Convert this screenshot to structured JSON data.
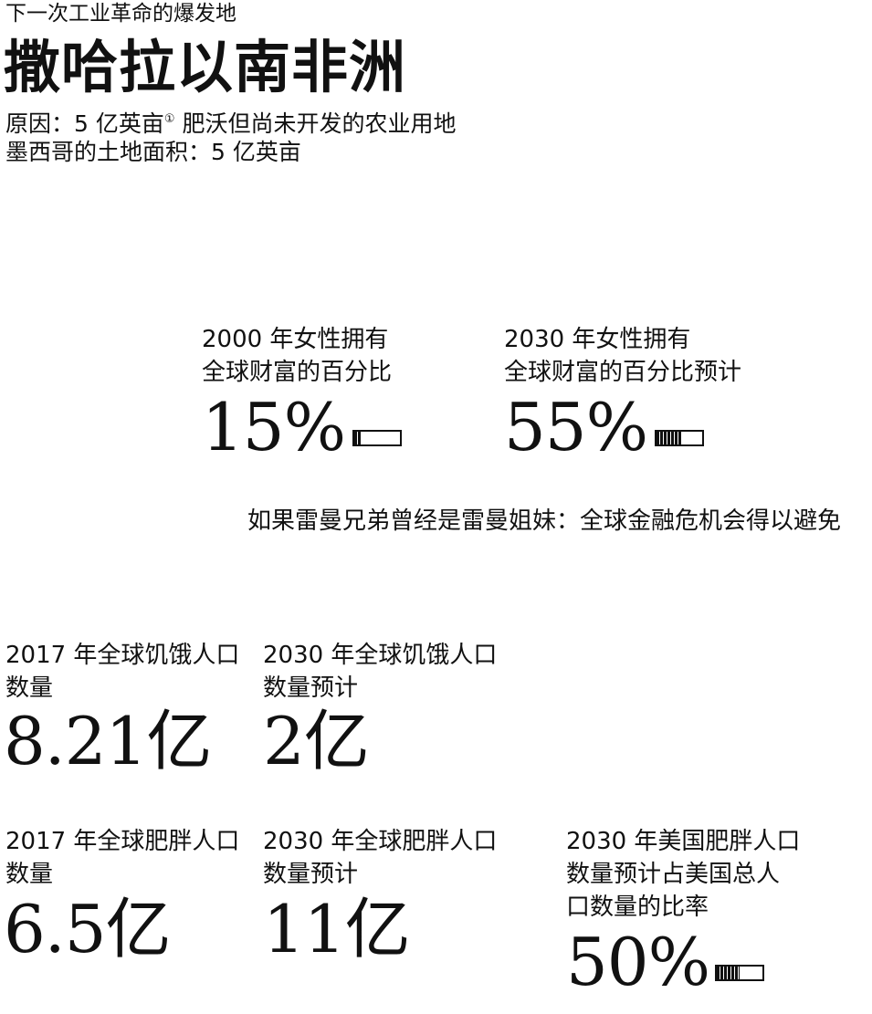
{
  "header": {
    "kicker": "下一次工业革命的爆发地",
    "headline": "撒哈拉以南非洲",
    "reason_prefix": "原因：5 亿英亩",
    "reason_note": "①",
    "reason_suffix": " 肥沃但尚未开发的农业用地",
    "mexico": "墨西哥的土地面积：5 亿英亩"
  },
  "women_wealth": {
    "y2000": {
      "label_line1": "2000 年女性拥有",
      "label_line2": "全球财富的百分比",
      "value": "15%",
      "share": 0.15
    },
    "y2030": {
      "label_line1": "2030 年女性拥有",
      "label_line2": "全球财富的百分比预计",
      "value": "55%",
      "share": 0.55
    }
  },
  "lehman_line": "如果雷曼兄弟曾经是雷曼姐妹：全球金融危机会得以避免",
  "hunger": {
    "y2017": {
      "label_line1": "2017 年全球饥饿人口",
      "label_line2": "数量",
      "value": "8.21亿"
    },
    "y2030": {
      "label_line1": "2030 年全球饥饿人口",
      "label_line2": "数量预计",
      "value": "2亿"
    }
  },
  "obesity": {
    "y2017": {
      "label_line1": "2017 年全球肥胖人口",
      "label_line2": "数量",
      "value": "6.5亿"
    },
    "y2030": {
      "label_line1": "2030 年全球肥胖人口",
      "label_line2": "数量预计",
      "value": "11亿"
    },
    "us2030": {
      "label_line1": "2030 年美国肥胖人口",
      "label_line2": "数量预计占美国总人",
      "label_line3": "口数量的比率",
      "value": "50%",
      "share": 0.5
    }
  }
}
